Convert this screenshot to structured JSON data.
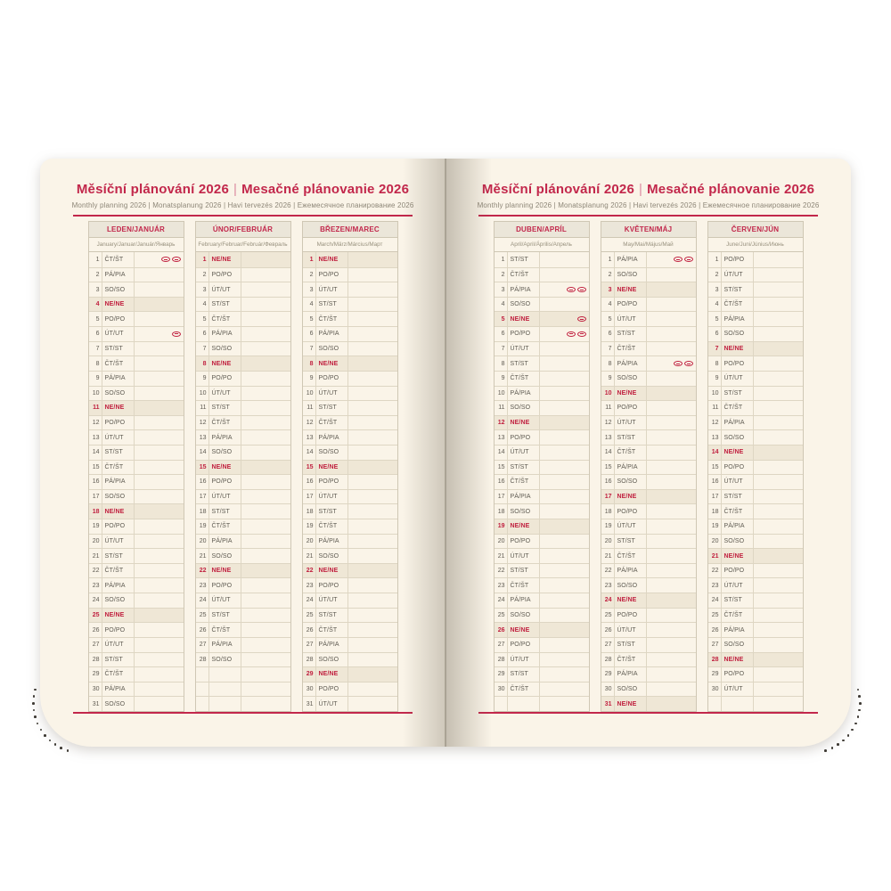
{
  "header": {
    "title_cz": "Měsíční plánování 2026",
    "separator": "|",
    "title_sk": "Mesačné plánovanie 2026",
    "subtitle": "Monthly planning 2026 | Monatsplanung 2026 | Havi tervezés 2026 | Ежемесячное планирование 2026"
  },
  "colors": {
    "accent_red": "#c2274b",
    "sunday_red": "#c0203f",
    "page_cream": "#faf4e8",
    "sunday_shade": "#efe7d6",
    "header_shade": "#ebe6d9"
  },
  "day_row_format": "[day_number, weekday_cz/sk, is_sunday, holiday_marker_count]",
  "months": [
    {
      "id": "leden-januar",
      "name": "LEDEN/JANUÁR",
      "langs": "January/Januar/Január/Январь",
      "empty_rows": 0,
      "days": [
        [
          1,
          "ČT/ŠT",
          0,
          2
        ],
        [
          2,
          "PÁ/PIA",
          0,
          0
        ],
        [
          3,
          "SO/SO",
          0,
          0
        ],
        [
          4,
          "NE/NE",
          1,
          0
        ],
        [
          5,
          "PO/PO",
          0,
          0
        ],
        [
          6,
          "ÚT/UT",
          0,
          1
        ],
        [
          7,
          "ST/ST",
          0,
          0
        ],
        [
          8,
          "ČT/ŠT",
          0,
          0
        ],
        [
          9,
          "PÁ/PIA",
          0,
          0
        ],
        [
          10,
          "SO/SO",
          0,
          0
        ],
        [
          11,
          "NE/NE",
          1,
          0
        ],
        [
          12,
          "PO/PO",
          0,
          0
        ],
        [
          13,
          "ÚT/UT",
          0,
          0
        ],
        [
          14,
          "ST/ST",
          0,
          0
        ],
        [
          15,
          "ČT/ŠT",
          0,
          0
        ],
        [
          16,
          "PÁ/PIA",
          0,
          0
        ],
        [
          17,
          "SO/SO",
          0,
          0
        ],
        [
          18,
          "NE/NE",
          1,
          0
        ],
        [
          19,
          "PO/PO",
          0,
          0
        ],
        [
          20,
          "ÚT/UT",
          0,
          0
        ],
        [
          21,
          "ST/ST",
          0,
          0
        ],
        [
          22,
          "ČT/ŠT",
          0,
          0
        ],
        [
          23,
          "PÁ/PIA",
          0,
          0
        ],
        [
          24,
          "SO/SO",
          0,
          0
        ],
        [
          25,
          "NE/NE",
          1,
          0
        ],
        [
          26,
          "PO/PO",
          0,
          0
        ],
        [
          27,
          "ÚT/UT",
          0,
          0
        ],
        [
          28,
          "ST/ST",
          0,
          0
        ],
        [
          29,
          "ČT/ŠT",
          0,
          0
        ],
        [
          30,
          "PÁ/PIA",
          0,
          0
        ],
        [
          31,
          "SO/SO",
          0,
          0
        ]
      ]
    },
    {
      "id": "unor-februar",
      "name": "ÚNOR/FEBRUÁR",
      "langs": "February/Februar/Február/Февраль",
      "empty_rows": 3,
      "days": [
        [
          1,
          "NE/NE",
          1,
          0
        ],
        [
          2,
          "PO/PO",
          0,
          0
        ],
        [
          3,
          "ÚT/UT",
          0,
          0
        ],
        [
          4,
          "ST/ST",
          0,
          0
        ],
        [
          5,
          "ČT/ŠT",
          0,
          0
        ],
        [
          6,
          "PÁ/PIA",
          0,
          0
        ],
        [
          7,
          "SO/SO",
          0,
          0
        ],
        [
          8,
          "NE/NE",
          1,
          0
        ],
        [
          9,
          "PO/PO",
          0,
          0
        ],
        [
          10,
          "ÚT/UT",
          0,
          0
        ],
        [
          11,
          "ST/ST",
          0,
          0
        ],
        [
          12,
          "ČT/ŠT",
          0,
          0
        ],
        [
          13,
          "PÁ/PIA",
          0,
          0
        ],
        [
          14,
          "SO/SO",
          0,
          0
        ],
        [
          15,
          "NE/NE",
          1,
          0
        ],
        [
          16,
          "PO/PO",
          0,
          0
        ],
        [
          17,
          "ÚT/UT",
          0,
          0
        ],
        [
          18,
          "ST/ST",
          0,
          0
        ],
        [
          19,
          "ČT/ŠT",
          0,
          0
        ],
        [
          20,
          "PÁ/PIA",
          0,
          0
        ],
        [
          21,
          "SO/SO",
          0,
          0
        ],
        [
          22,
          "NE/NE",
          1,
          0
        ],
        [
          23,
          "PO/PO",
          0,
          0
        ],
        [
          24,
          "ÚT/UT",
          0,
          0
        ],
        [
          25,
          "ST/ST",
          0,
          0
        ],
        [
          26,
          "ČT/ŠT",
          0,
          0
        ],
        [
          27,
          "PÁ/PIA",
          0,
          0
        ],
        [
          28,
          "SO/SO",
          0,
          0
        ]
      ]
    },
    {
      "id": "brezen-marec",
      "name": "BŘEZEN/MAREC",
      "langs": "March/März/Március/Март",
      "empty_rows": 0,
      "days": [
        [
          1,
          "NE/NE",
          1,
          0
        ],
        [
          2,
          "PO/PO",
          0,
          0
        ],
        [
          3,
          "ÚT/UT",
          0,
          0
        ],
        [
          4,
          "ST/ST",
          0,
          0
        ],
        [
          5,
          "ČT/ŠT",
          0,
          0
        ],
        [
          6,
          "PÁ/PIA",
          0,
          0
        ],
        [
          7,
          "SO/SO",
          0,
          0
        ],
        [
          8,
          "NE/NE",
          1,
          0
        ],
        [
          9,
          "PO/PO",
          0,
          0
        ],
        [
          10,
          "ÚT/UT",
          0,
          0
        ],
        [
          11,
          "ST/ST",
          0,
          0
        ],
        [
          12,
          "ČT/ŠT",
          0,
          0
        ],
        [
          13,
          "PÁ/PIA",
          0,
          0
        ],
        [
          14,
          "SO/SO",
          0,
          0
        ],
        [
          15,
          "NE/NE",
          1,
          0
        ],
        [
          16,
          "PO/PO",
          0,
          0
        ],
        [
          17,
          "ÚT/UT",
          0,
          0
        ],
        [
          18,
          "ST/ST",
          0,
          0
        ],
        [
          19,
          "ČT/ŠT",
          0,
          0
        ],
        [
          20,
          "PÁ/PIA",
          0,
          0
        ],
        [
          21,
          "SO/SO",
          0,
          0
        ],
        [
          22,
          "NE/NE",
          1,
          0
        ],
        [
          23,
          "PO/PO",
          0,
          0
        ],
        [
          24,
          "ÚT/UT",
          0,
          0
        ],
        [
          25,
          "ST/ST",
          0,
          0
        ],
        [
          26,
          "ČT/ŠT",
          0,
          0
        ],
        [
          27,
          "PÁ/PIA",
          0,
          0
        ],
        [
          28,
          "SO/SO",
          0,
          0
        ],
        [
          29,
          "NE/NE",
          1,
          0
        ],
        [
          30,
          "PO/PO",
          0,
          0
        ],
        [
          31,
          "ÚT/UT",
          0,
          0
        ]
      ]
    },
    {
      "id": "duben-april",
      "name": "DUBEN/APRÍL",
      "langs": "April/April/Április/Апрель",
      "empty_rows": 1,
      "days": [
        [
          1,
          "ST/ST",
          0,
          0
        ],
        [
          2,
          "ČT/ŠT",
          0,
          0
        ],
        [
          3,
          "PÁ/PIA",
          0,
          2
        ],
        [
          4,
          "SO/SO",
          0,
          0
        ],
        [
          5,
          "NE/NE",
          1,
          1
        ],
        [
          6,
          "PO/PO",
          0,
          2
        ],
        [
          7,
          "ÚT/UT",
          0,
          0
        ],
        [
          8,
          "ST/ST",
          0,
          0
        ],
        [
          9,
          "ČT/ŠT",
          0,
          0
        ],
        [
          10,
          "PÁ/PIA",
          0,
          0
        ],
        [
          11,
          "SO/SO",
          0,
          0
        ],
        [
          12,
          "NE/NE",
          1,
          0
        ],
        [
          13,
          "PO/PO",
          0,
          0
        ],
        [
          14,
          "ÚT/UT",
          0,
          0
        ],
        [
          15,
          "ST/ST",
          0,
          0
        ],
        [
          16,
          "ČT/ŠT",
          0,
          0
        ],
        [
          17,
          "PÁ/PIA",
          0,
          0
        ],
        [
          18,
          "SO/SO",
          0,
          0
        ],
        [
          19,
          "NE/NE",
          1,
          0
        ],
        [
          20,
          "PO/PO",
          0,
          0
        ],
        [
          21,
          "ÚT/UT",
          0,
          0
        ],
        [
          22,
          "ST/ST",
          0,
          0
        ],
        [
          23,
          "ČT/ŠT",
          0,
          0
        ],
        [
          24,
          "PÁ/PIA",
          0,
          0
        ],
        [
          25,
          "SO/SO",
          0,
          0
        ],
        [
          26,
          "NE/NE",
          1,
          0
        ],
        [
          27,
          "PO/PO",
          0,
          0
        ],
        [
          28,
          "ÚT/UT",
          0,
          0
        ],
        [
          29,
          "ST/ST",
          0,
          0
        ],
        [
          30,
          "ČT/ŠT",
          0,
          0
        ]
      ]
    },
    {
      "id": "kveten-maj",
      "name": "KVĚTEN/MÁJ",
      "langs": "May/Mai/Május/Май",
      "empty_rows": 0,
      "days": [
        [
          1,
          "PÁ/PIA",
          0,
          2
        ],
        [
          2,
          "SO/SO",
          0,
          0
        ],
        [
          3,
          "NE/NE",
          1,
          0
        ],
        [
          4,
          "PO/PO",
          0,
          0
        ],
        [
          5,
          "ÚT/UT",
          0,
          0
        ],
        [
          6,
          "ST/ST",
          0,
          0
        ],
        [
          7,
          "ČT/ŠT",
          0,
          0
        ],
        [
          8,
          "PÁ/PIA",
          0,
          2
        ],
        [
          9,
          "SO/SO",
          0,
          0
        ],
        [
          10,
          "NE/NE",
          1,
          0
        ],
        [
          11,
          "PO/PO",
          0,
          0
        ],
        [
          12,
          "ÚT/UT",
          0,
          0
        ],
        [
          13,
          "ST/ST",
          0,
          0
        ],
        [
          14,
          "ČT/ŠT",
          0,
          0
        ],
        [
          15,
          "PÁ/PIA",
          0,
          0
        ],
        [
          16,
          "SO/SO",
          0,
          0
        ],
        [
          17,
          "NE/NE",
          1,
          0
        ],
        [
          18,
          "PO/PO",
          0,
          0
        ],
        [
          19,
          "ÚT/UT",
          0,
          0
        ],
        [
          20,
          "ST/ST",
          0,
          0
        ],
        [
          21,
          "ČT/ŠT",
          0,
          0
        ],
        [
          22,
          "PÁ/PIA",
          0,
          0
        ],
        [
          23,
          "SO/SO",
          0,
          0
        ],
        [
          24,
          "NE/NE",
          1,
          0
        ],
        [
          25,
          "PO/PO",
          0,
          0
        ],
        [
          26,
          "ÚT/UT",
          0,
          0
        ],
        [
          27,
          "ST/ST",
          0,
          0
        ],
        [
          28,
          "ČT/ŠT",
          0,
          0
        ],
        [
          29,
          "PÁ/PIA",
          0,
          0
        ],
        [
          30,
          "SO/SO",
          0,
          0
        ],
        [
          31,
          "NE/NE",
          1,
          0
        ]
      ]
    },
    {
      "id": "cerven-jun",
      "name": "ČERVEN/JÚN",
      "langs": "June/Juni/Június/Июнь",
      "empty_rows": 1,
      "days": [
        [
          1,
          "PO/PO",
          0,
          0
        ],
        [
          2,
          "ÚT/UT",
          0,
          0
        ],
        [
          3,
          "ST/ST",
          0,
          0
        ],
        [
          4,
          "ČT/ŠT",
          0,
          0
        ],
        [
          5,
          "PÁ/PIA",
          0,
          0
        ],
        [
          6,
          "SO/SO",
          0,
          0
        ],
        [
          7,
          "NE/NE",
          1,
          0
        ],
        [
          8,
          "PO/PO",
          0,
          0
        ],
        [
          9,
          "ÚT/UT",
          0,
          0
        ],
        [
          10,
          "ST/ST",
          0,
          0
        ],
        [
          11,
          "ČT/ŠT",
          0,
          0
        ],
        [
          12,
          "PÁ/PIA",
          0,
          0
        ],
        [
          13,
          "SO/SO",
          0,
          0
        ],
        [
          14,
          "NE/NE",
          1,
          0
        ],
        [
          15,
          "PO/PO",
          0,
          0
        ],
        [
          16,
          "ÚT/UT",
          0,
          0
        ],
        [
          17,
          "ST/ST",
          0,
          0
        ],
        [
          18,
          "ČT/ŠT",
          0,
          0
        ],
        [
          19,
          "PÁ/PIA",
          0,
          0
        ],
        [
          20,
          "SO/SO",
          0,
          0
        ],
        [
          21,
          "NE/NE",
          1,
          0
        ],
        [
          22,
          "PO/PO",
          0,
          0
        ],
        [
          23,
          "ÚT/UT",
          0,
          0
        ],
        [
          24,
          "ST/ST",
          0,
          0
        ],
        [
          25,
          "ČT/ŠT",
          0,
          0
        ],
        [
          26,
          "PÁ/PIA",
          0,
          0
        ],
        [
          27,
          "SO/SO",
          0,
          0
        ],
        [
          28,
          "NE/NE",
          1,
          0
        ],
        [
          29,
          "PO/PO",
          0,
          0
        ],
        [
          30,
          "ÚT/UT",
          0,
          0
        ]
      ]
    }
  ]
}
